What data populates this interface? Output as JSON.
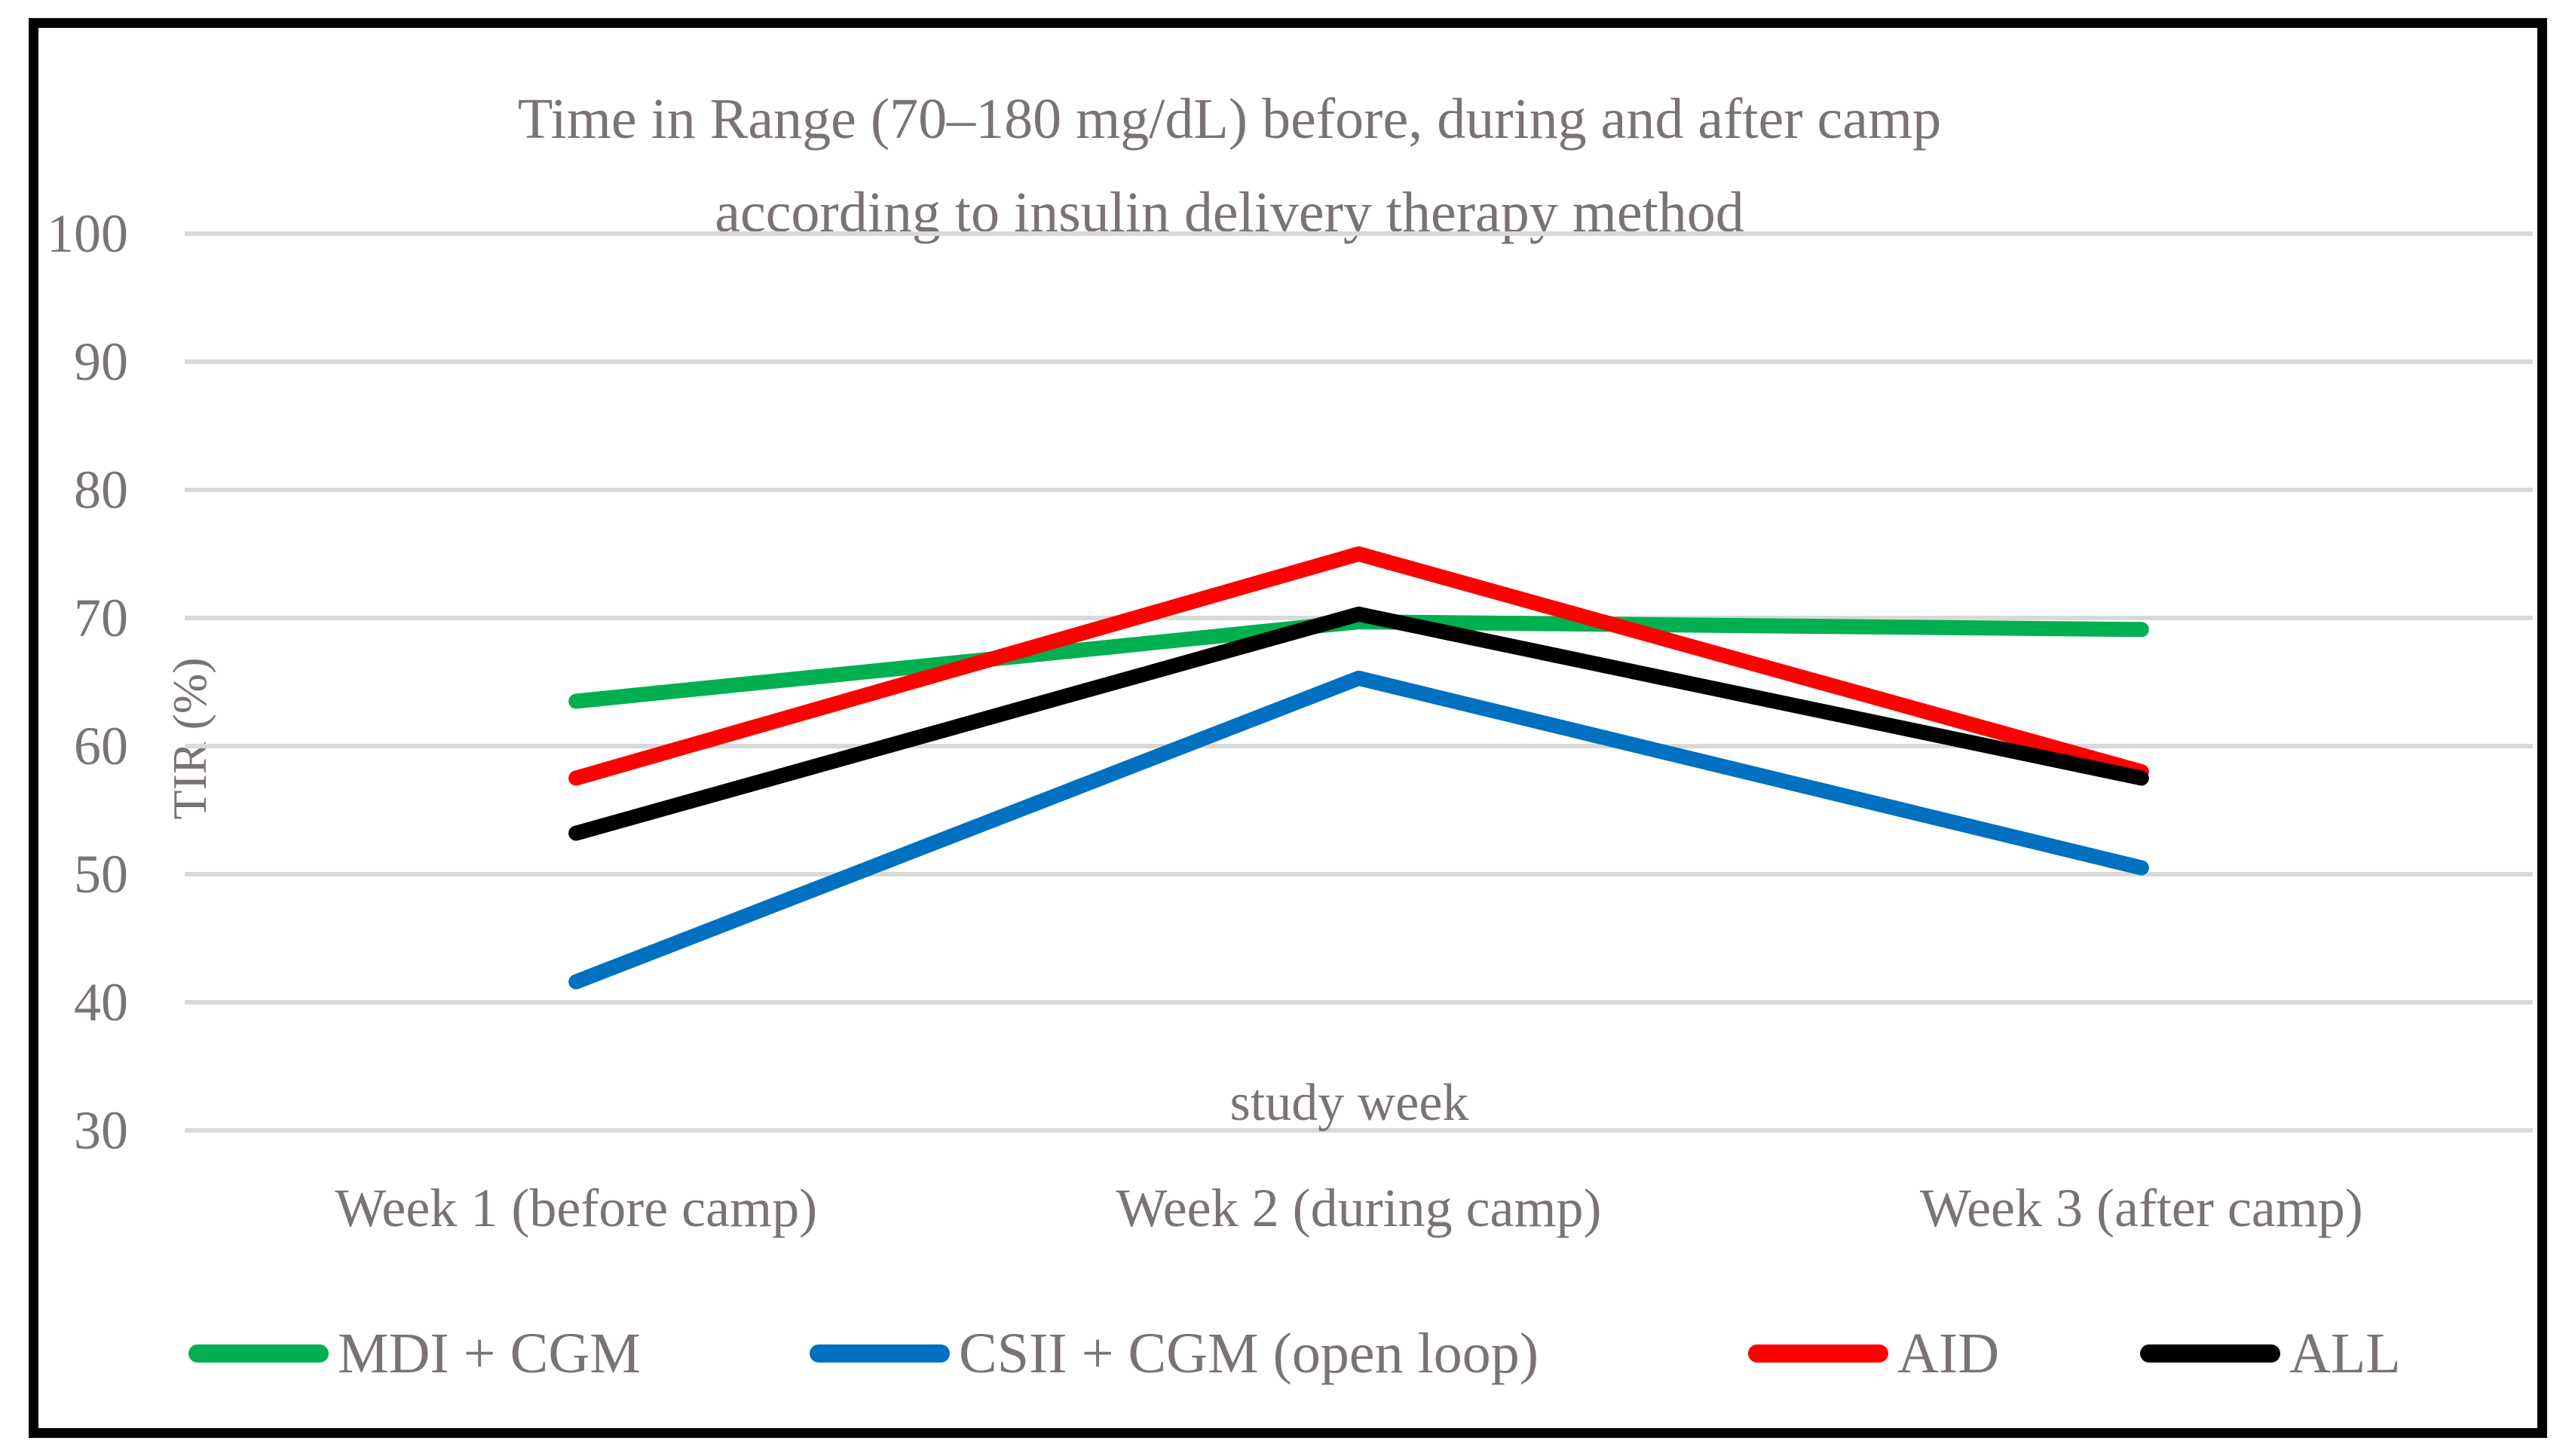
{
  "title": {
    "line1": "Time in Range (70–180 mg/dL) before, during and after camp",
    "line2": "according to insulin delivery therapy method"
  },
  "y_axis": {
    "label": "TIR (%)",
    "ticks": [
      100,
      90,
      80,
      70,
      60,
      50,
      40,
      30
    ]
  },
  "x_axis": {
    "label": "study week",
    "categories": [
      "Week 1 (before camp)",
      "Week 2 (during camp)",
      "Week 3 (after camp)"
    ]
  },
  "legend": {
    "items": [
      "MDI + CGM",
      "CSII + CGM (open loop)",
      "AID",
      "ALL"
    ]
  },
  "colors": {
    "green_series": "#00B050",
    "blue_series": "#0070C0",
    "red_series": "#FF0000",
    "black_series": "#000000",
    "gridline": "#D9D9D9",
    "text": "#7B7373",
    "border": "#000000",
    "background": "#FFFFFF"
  },
  "chart_data": {
    "type": "line",
    "title": "Time in Range (70–180 mg/dL) before, during and after camp according to insulin delivery therapy method",
    "categories": [
      "Week 1 (before camp)",
      "Week 2 (during camp)",
      "Week 3 (after camp)"
    ],
    "series": [
      {
        "name": "MDI + CGM",
        "color": "#00B050",
        "values": [
          63.5,
          69.7,
          69.1
        ]
      },
      {
        "name": "CSII + CGM (open loop)",
        "color": "#0070C0",
        "values": [
          41.6,
          65.3,
          50.5
        ]
      },
      {
        "name": "AID",
        "color": "#FF0000",
        "values": [
          57.5,
          75.0,
          58.0
        ]
      },
      {
        "name": "ALL",
        "color": "#000000",
        "values": [
          53.2,
          70.3,
          57.5
        ]
      }
    ],
    "xlabel": "study week",
    "ylabel": "TIR (%)",
    "ylim": [
      30,
      100
    ],
    "y_tick_step": 10,
    "grid": true,
    "legend_position": "bottom"
  }
}
